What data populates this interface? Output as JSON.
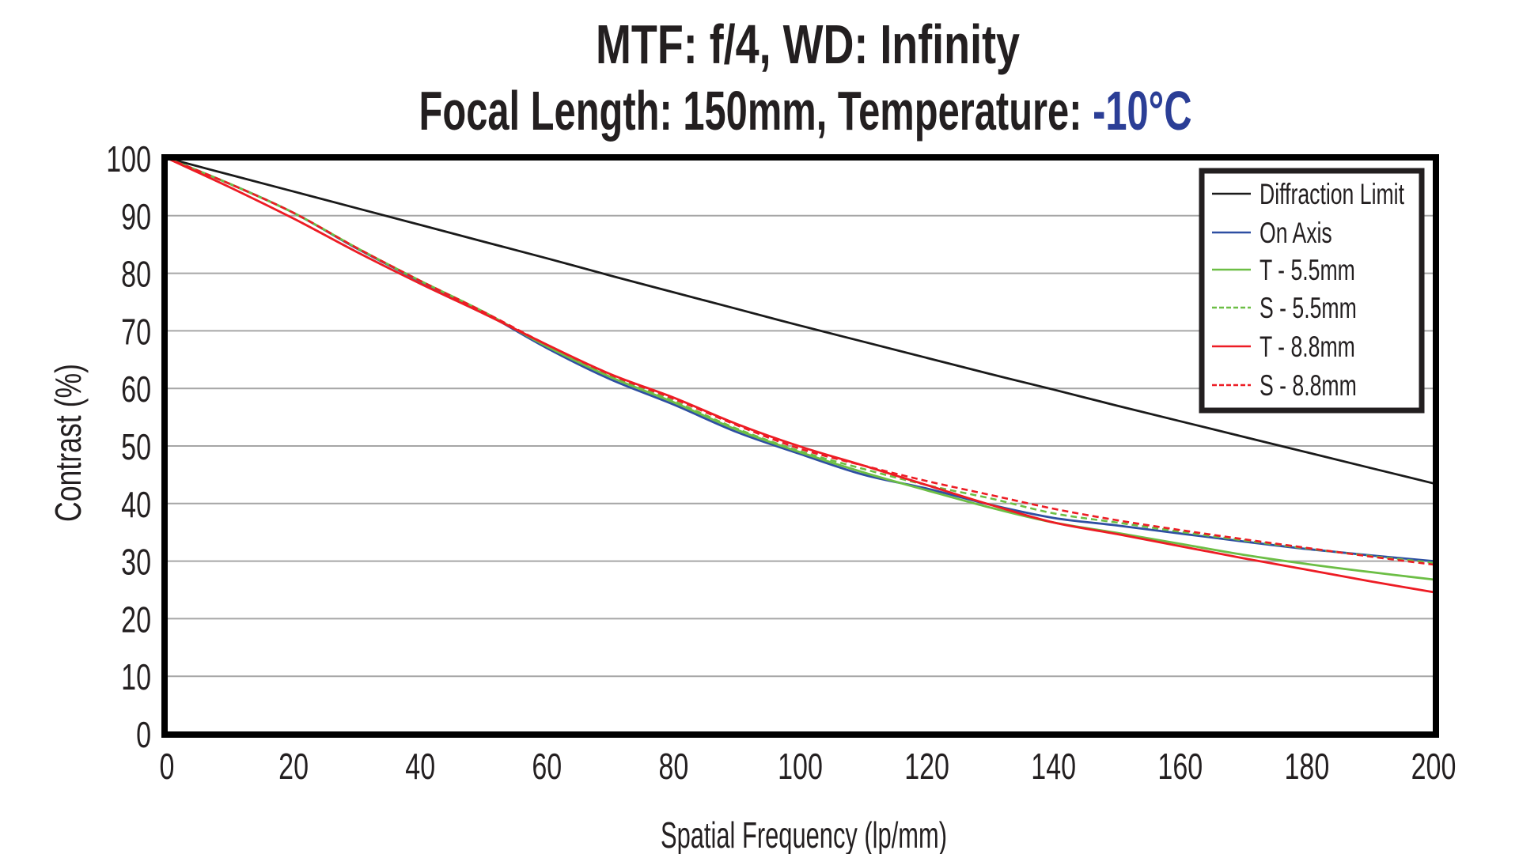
{
  "chart_data": {
    "type": "line",
    "title_line1": "MTF: f/4, WD: Infinity",
    "title_line2_prefix": "Focal Length: 150mm, Temperature: ",
    "title_line2_highlight": "-10°C",
    "title_highlight_color": "#2b3e96",
    "xlabel": "Spatial Frequency (lp/mm)",
    "ylabel": "Contrast (%)",
    "xlim": [
      0,
      200
    ],
    "ylim": [
      0,
      100
    ],
    "xticks": [
      0,
      20,
      40,
      60,
      80,
      100,
      120,
      140,
      160,
      180,
      200
    ],
    "yticks": [
      0,
      10,
      20,
      30,
      40,
      50,
      60,
      70,
      80,
      90,
      100
    ],
    "grid": "horizontal",
    "legend_position": "top-right",
    "x": [
      0,
      10,
      20,
      30,
      40,
      50,
      60,
      70,
      80,
      90,
      100,
      110,
      120,
      130,
      140,
      150,
      160,
      170,
      180,
      190,
      200
    ],
    "series": [
      {
        "name": "Diffraction Limit",
        "color": "#1a1a1a",
        "dashed": false,
        "values": [
          100,
          97.1,
          94.2,
          91.3,
          88.4,
          85.5,
          82.6,
          79.6,
          76.7,
          73.8,
          70.9,
          68.1,
          65.3,
          62.5,
          59.8,
          57.0,
          54.3,
          51.6,
          48.9,
          46.2,
          43.5
        ]
      },
      {
        "name": "On Axis",
        "color": "#2e4fa2",
        "dashed": false,
        "values": [
          100,
          95.5,
          90.5,
          84.3,
          78.6,
          73.2,
          67.0,
          61.6,
          57.2,
          52.4,
          48.6,
          45.0,
          42.6,
          39.8,
          37.5,
          36.2,
          34.8,
          33.4,
          32.1,
          31.0,
          30.0
        ]
      },
      {
        "name": "T - 5.5mm",
        "color": "#6cbe45",
        "dashed": false,
        "values": [
          100,
          95.5,
          90.5,
          84.4,
          78.7,
          73.3,
          67.3,
          62.0,
          57.6,
          52.8,
          48.9,
          45.4,
          42.3,
          39.3,
          36.7,
          34.9,
          33.0,
          31.1,
          29.5,
          28.1,
          26.8
        ]
      },
      {
        "name": "S - 5.5mm",
        "color": "#6cbe45",
        "dashed": true,
        "values": [
          100,
          95.5,
          90.5,
          84.4,
          78.7,
          73.3,
          67.4,
          62.1,
          57.8,
          53.0,
          49.1,
          46.0,
          43.2,
          40.9,
          38.3,
          36.7,
          35.1,
          33.6,
          32.2,
          30.9,
          29.7
        ]
      },
      {
        "name": "T - 8.8mm",
        "color": "#ed1c24",
        "dashed": false,
        "values": [
          100,
          94.9,
          89.5,
          83.7,
          78.2,
          73.0,
          67.6,
          62.5,
          58.4,
          53.8,
          49.9,
          46.6,
          43.2,
          39.8,
          36.7,
          34.7,
          32.6,
          30.5,
          28.5,
          26.5,
          24.6
        ]
      },
      {
        "name": "S - 8.8mm",
        "color": "#ed1c24",
        "dashed": true,
        "values": [
          100,
          95.5,
          90.5,
          84.4,
          78.7,
          73.3,
          67.6,
          62.4,
          58.2,
          53.6,
          49.5,
          46.6,
          43.9,
          41.5,
          39.1,
          37.1,
          35.4,
          33.8,
          32.3,
          30.8,
          29.4
        ]
      }
    ]
  }
}
